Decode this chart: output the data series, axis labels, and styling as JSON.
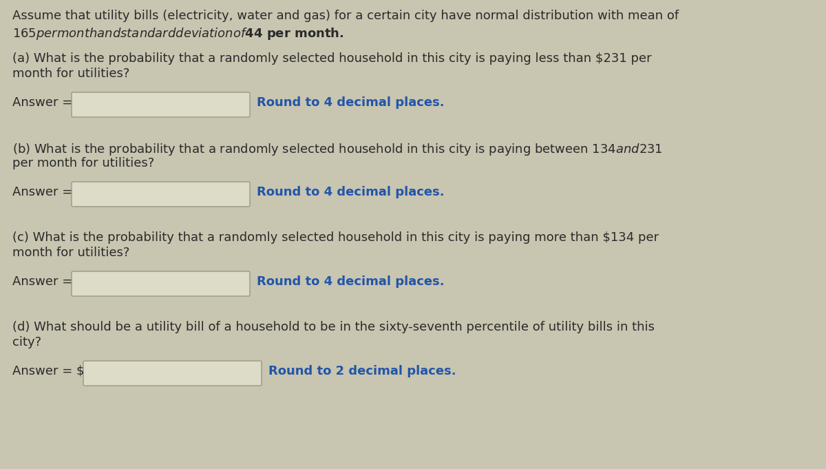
{
  "bg_color": "#c8c5b0",
  "text_color": "#2a2a2a",
  "blue_color": "#2255aa",
  "box_fill": "#dddcc8",
  "box_edge": "#999980",
  "intro_line1": "Assume that utility bills (electricity, water and gas) for a certain city have normal distribution with mean of",
  "intro_line2": "$165 per month and standard deviation of $44 per month.",
  "q_a_line1": "(a) What is the probability that a randomly selected household in this city is paying less than $231 per",
  "q_a_line2": "month for utilities?",
  "q_b_line1": "(b) What is the probability that a randomly selected household in this city is paying between $134 and $231",
  "q_b_line2": "per month for utilities?",
  "q_c_line1": "(c) What is the probability that a randomly selected household in this city is paying more than $134 per",
  "q_c_line2": "month for utilities?",
  "q_d_line1": "(d) What should be a utility bill of a household to be in the sixty-seventh percentile of utility bills in this",
  "q_d_line2": "city?",
  "answer_label": "Answer =",
  "answer_d_label": "Answer = $",
  "round_4": "Round to 4 decimal places.",
  "round_2": "Round to 2 decimal places.",
  "font_size": 13.0
}
